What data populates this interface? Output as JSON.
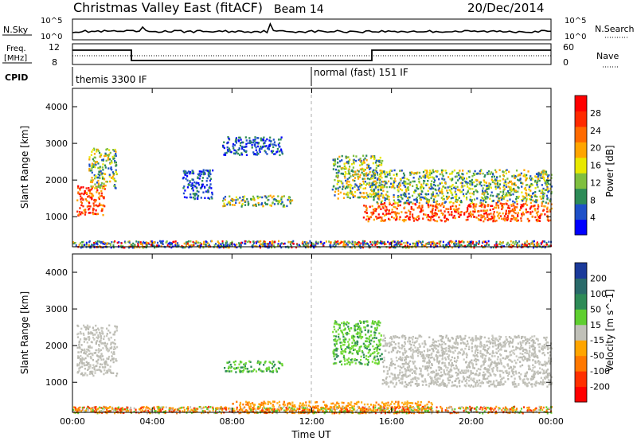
{
  "header": {
    "title": "Christmas Valley East (fitACF)",
    "beam": "Beam 14",
    "date": "20/Dec/2014"
  },
  "nsky_panel": {
    "left_label": "N.Sky",
    "left_ticks": [
      "10^5",
      "10^0"
    ],
    "right_label": "N.Search",
    "right_ticks": [
      "10^5",
      "10^0"
    ]
  },
  "freq_panel": {
    "left_label_1": "Freq.",
    "left_label_2": "[MHz]",
    "left_ticks": [
      "12",
      "8"
    ],
    "right_label": "Nave",
    "right_ticks": [
      "60",
      "0"
    ],
    "cpid_label": "CPID",
    "modes": [
      "themis 3300 IF",
      "normal (fast) 151 IF"
    ]
  },
  "chart_data": [
    {
      "type": "heatmap",
      "name": "Power",
      "xlabel": "",
      "ylabel": "Slant Range [km]",
      "x_ticks": [
        "00:00",
        "04:00",
        "08:00",
        "12:00",
        "16:00",
        "20:00",
        "00:00"
      ],
      "x_range_hours": [
        0,
        24
      ],
      "y_ticks": [
        "1000",
        "2000",
        "3000",
        "4000"
      ],
      "y_range_km": [
        180,
        4500
      ],
      "colorbar": {
        "label": "Power [dB]",
        "ticks": [
          "4",
          "8",
          "12",
          "16",
          "20",
          "24",
          "28"
        ],
        "colors": [
          "#0000ff",
          "#1e50c8",
          "#2d8b57",
          "#7fbf3f",
          "#e8e800",
          "#ffa500",
          "#ff6a00",
          "#ff2a00",
          "#ff0000"
        ]
      },
      "regions": [
        {
          "t": [
            0.2,
            1.6
          ],
          "r": [
            1050,
            1900
          ],
          "level": "high"
        },
        {
          "t": [
            0.8,
            2.2
          ],
          "r": [
            1800,
            2900
          ],
          "level": "mid"
        },
        {
          "t": [
            5.5,
            7.0
          ],
          "r": [
            1500,
            2300
          ],
          "level": "low"
        },
        {
          "t": [
            7.5,
            11.0
          ],
          "r": [
            1300,
            1600
          ],
          "level": "mid"
        },
        {
          "t": [
            7.5,
            10.5
          ],
          "r": [
            2700,
            3200
          ],
          "level": "low"
        },
        {
          "t": [
            13.0,
            15.5
          ],
          "r": [
            1500,
            2700
          ],
          "level": "mid"
        },
        {
          "t": [
            14.5,
            24.0
          ],
          "r": [
            900,
            1400
          ],
          "level": "high"
        },
        {
          "t": [
            15.0,
            24.0
          ],
          "r": [
            1400,
            2300
          ],
          "level": "mid"
        }
      ]
    },
    {
      "type": "heatmap",
      "name": "Velocity",
      "xlabel": "Time UT",
      "ylabel": "Slant Range [km]",
      "x_ticks": [
        "00:00",
        "04:00",
        "08:00",
        "12:00",
        "16:00",
        "20:00",
        "00:00"
      ],
      "x_range_hours": [
        0,
        24
      ],
      "y_ticks": [
        "1000",
        "2000",
        "3000",
        "4000"
      ],
      "y_range_km": [
        180,
        4500
      ],
      "colorbar": {
        "label": "Velocity [m s^-1]",
        "ticks": [
          "200",
          "100",
          "50",
          "15",
          "-15",
          "-50",
          "-100",
          "-200"
        ],
        "colors": [
          "#1a3a9a",
          "#2a6a6a",
          "#2e8b57",
          "#5fcf30",
          "#c0c0b8",
          "#ffa500",
          "#ff7800",
          "#ff3000",
          "#ff0000"
        ]
      },
      "regions": [
        {
          "t": [
            0.2,
            2.2
          ],
          "r": [
            1200,
            2600
          ],
          "level": "ground"
        },
        {
          "t": [
            7.5,
            10.5
          ],
          "r": [
            1300,
            1600
          ],
          "level": "toward"
        },
        {
          "t": [
            13.0,
            15.5
          ],
          "r": [
            1500,
            2700
          ],
          "level": "toward"
        },
        {
          "t": [
            15.5,
            24.0
          ],
          "r": [
            900,
            2300
          ],
          "level": "ground"
        },
        {
          "t": [
            8.0,
            18.0
          ],
          "r": [
            180,
            500
          ],
          "level": "away"
        }
      ]
    }
  ]
}
